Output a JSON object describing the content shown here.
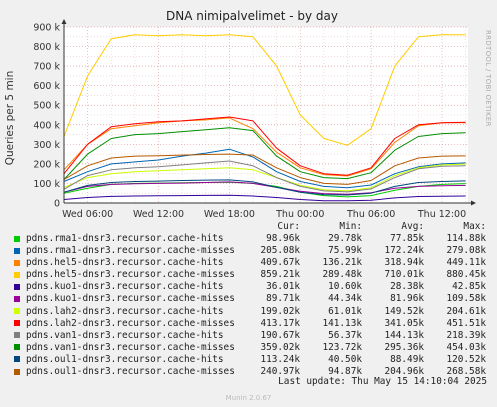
{
  "chart_data": {
    "type": "line",
    "title": "DNA nimipalvelimet - by day",
    "ylabel": "Queries per 5 min",
    "side_label": "RRDTOOL / TOBI OETIKER",
    "ylim": [
      0,
      900000
    ],
    "yticks": [
      0,
      100000,
      200000,
      300000,
      400000,
      500000,
      600000,
      700000,
      800000,
      900000
    ],
    "ytick_labels": [
      "0",
      "100 k",
      "200 k",
      "300 k",
      "400 k",
      "500 k",
      "600 k",
      "700 k",
      "800 k",
      "900 k"
    ],
    "x_hours": [
      4,
      6,
      8,
      10,
      12,
      14,
      16,
      18,
      20,
      22,
      24,
      26,
      28,
      30,
      32,
      34,
      36,
      38
    ],
    "xlim": [
      4,
      38.2
    ],
    "xticks": [
      6,
      12,
      18,
      24,
      30,
      36
    ],
    "xtick_labels": [
      "Wed 06:00",
      "Wed 12:00",
      "Wed 18:00",
      "Thu 00:00",
      "Thu 06:00",
      "Thu 12:00"
    ],
    "grid": true,
    "series": [
      {
        "name": "pdns.rma1-dnsr3.recursor.cache-hits",
        "color": "#00cc00",
        "cur": "98.96k",
        "min": "29.78k",
        "avg": "77.85k",
        "max": "114.88k",
        "values": [
          50000,
          75000,
          95000,
          100000,
          102000,
          104000,
          105000,
          106000,
          100000,
          85000,
          55000,
          38000,
          31000,
          38000,
          65000,
          85000,
          95000,
          99000
        ]
      },
      {
        "name": "pdns.rma1-dnsr3.recursor.cache-misses",
        "color": "#0066b3",
        "cur": "205.08k",
        "min": "75.99k",
        "avg": "172.24k",
        "max": "279.08k",
        "values": [
          110000,
          160000,
          200000,
          210000,
          220000,
          240000,
          255000,
          275000,
          235000,
          160000,
          110000,
          85000,
          78000,
          92000,
          150000,
          185000,
          200000,
          205000
        ]
      },
      {
        "name": "pdns.hel5-dnsr3.recursor.cache-hits",
        "color": "#ff8000",
        "cur": "409.67k",
        "min": "136.21k",
        "avg": "318.94k",
        "max": "449.11k",
        "values": [
          170000,
          300000,
          380000,
          395000,
          410000,
          420000,
          425000,
          435000,
          380000,
          260000,
          180000,
          145000,
          138000,
          175000,
          310000,
          395000,
          410000,
          410000
        ]
      },
      {
        "name": "pdns.hel5-dnsr3.recursor.cache-misses",
        "color": "#ffcc00",
        "cur": "859.21k",
        "min": "289.48k",
        "avg": "710.01k",
        "max": "880.45k",
        "values": [
          340000,
          650000,
          840000,
          860000,
          855000,
          860000,
          855000,
          860000,
          850000,
          700000,
          450000,
          330000,
          295000,
          380000,
          700000,
          850000,
          860000,
          860000
        ]
      },
      {
        "name": "pdns.kuo1-dnsr3.recursor.cache-hits",
        "color": "#330099",
        "cur": "36.01k",
        "min": "10.60k",
        "avg": "28.38k",
        "max": "42.85k",
        "values": [
          18000,
          28000,
          34000,
          36000,
          37000,
          38000,
          39000,
          40000,
          36000,
          28000,
          18000,
          12000,
          11000,
          14000,
          26000,
          33000,
          35000,
          36000
        ]
      },
      {
        "name": "pdns.kuo1-dnsr3.recursor.cache-misses",
        "color": "#990099",
        "cur": "89.71k",
        "min": "44.34k",
        "avg": "81.96k",
        "max": "109.58k",
        "values": [
          55000,
          85000,
          95000,
          98000,
          100000,
          102000,
          105000,
          108000,
          100000,
          80000,
          60000,
          48000,
          45000,
          52000,
          75000,
          85000,
          88000,
          90000
        ]
      },
      {
        "name": "pdns.lah2-dnsr3.recursor.cache-hits",
        "color": "#ccff00",
        "cur": "199.02k",
        "min": "61.01k",
        "avg": "149.52k",
        "max": "204.61k",
        "values": [
          80000,
          130000,
          150000,
          160000,
          165000,
          170000,
          175000,
          180000,
          170000,
          130000,
          90000,
          68000,
          62000,
          78000,
          140000,
          180000,
          195000,
          199000
        ]
      },
      {
        "name": "pdns.lah2-dnsr3.recursor.cache-misses",
        "color": "#ff0000",
        "cur": "413.17k",
        "min": "141.13k",
        "avg": "341.05k",
        "max": "451.51k",
        "values": [
          150000,
          300000,
          390000,
          405000,
          415000,
          420000,
          430000,
          440000,
          420000,
          280000,
          190000,
          150000,
          142000,
          180000,
          330000,
          400000,
          410000,
          413000
        ]
      },
      {
        "name": "pdns.van1-dnsr3.recursor.cache-hits",
        "color": "#808080",
        "cur": "190.67k",
        "min": "56.37k",
        "avg": "144.13k",
        "max": "218.39k",
        "values": [
          70000,
          140000,
          170000,
          180000,
          185000,
          195000,
          205000,
          215000,
          190000,
          130000,
          85000,
          62000,
          57000,
          72000,
          130000,
          175000,
          188000,
          190000
        ]
      },
      {
        "name": "pdns.van1-dnsr3.recursor.cache-misses",
        "color": "#008f00",
        "cur": "359.02k",
        "min": "123.72k",
        "avg": "295.36k",
        "max": "454.03k",
        "values": [
          120000,
          250000,
          330000,
          350000,
          355000,
          365000,
          375000,
          385000,
          370000,
          240000,
          160000,
          130000,
          125000,
          155000,
          270000,
          340000,
          355000,
          359000
        ]
      },
      {
        "name": "pdns.oul1-dnsr3.recursor.cache-hits",
        "color": "#00487d",
        "cur": "113.24k",
        "min": "40.50k",
        "avg": "88.49k",
        "max": "120.52k",
        "values": [
          55000,
          90000,
          105000,
          110000,
          112000,
          115000,
          117000,
          118000,
          108000,
          80000,
          55000,
          43000,
          41000,
          50000,
          85000,
          105000,
          110000,
          113000
        ]
      },
      {
        "name": "pdns.oul1-dnsr3.recursor.cache-misses",
        "color": "#b35a00",
        "cur": "240.97k",
        "min": "94.87k",
        "avg": "204.96k",
        "max": "268.58k",
        "values": [
          120000,
          190000,
          230000,
          240000,
          242000,
          245000,
          248000,
          250000,
          245000,
          180000,
          130000,
          100000,
          95000,
          115000,
          190000,
          230000,
          240000,
          241000
        ]
      }
    ]
  },
  "legend_header": {
    "cur": "Cur:",
    "min": "Min:",
    "avg": "Avg:",
    "max": "Max:"
  },
  "last_update": "Last update: Thu May 15 14:10:04 2025",
  "munin_version": "Munin 2.0.67"
}
